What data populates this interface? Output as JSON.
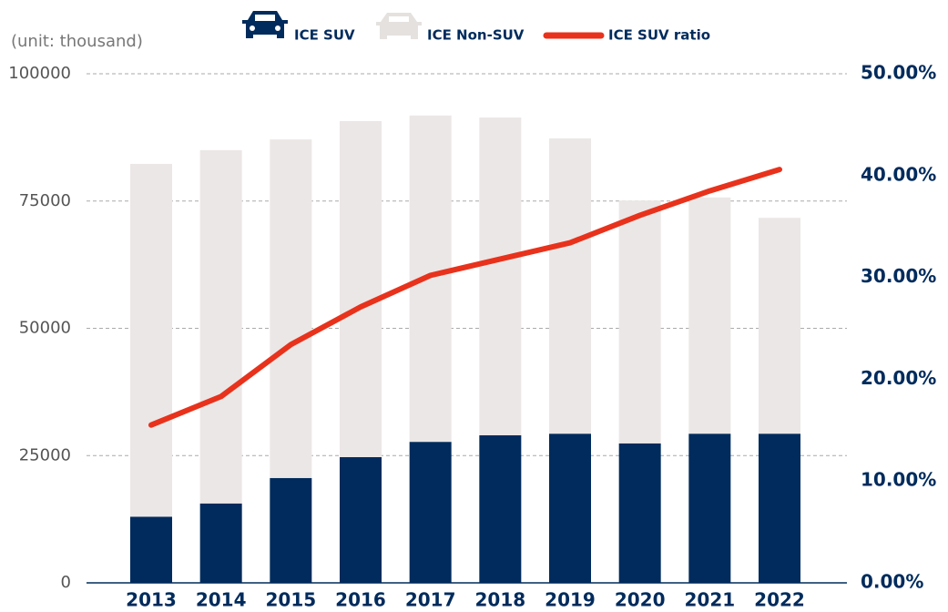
{
  "chart_data": {
    "type": "bar",
    "unit_label": "(unit: thousand)",
    "categories": [
      "2013",
      "2014",
      "2015",
      "2016",
      "2017",
      "2018",
      "2019",
      "2020",
      "2021",
      "2022"
    ],
    "series": [
      {
        "name": "ICE SUV",
        "type": "bar",
        "color": "#002b5c",
        "axis": "y",
        "values": [
          13000,
          15600,
          20600,
          24700,
          27700,
          29000,
          29300,
          27400,
          29300,
          29300
        ]
      },
      {
        "name": "ICE Non-SUV",
        "type": "bar",
        "color": "#ebe7e6",
        "axis": "y",
        "values": [
          69300,
          69400,
          66500,
          66000,
          64100,
          62400,
          58000,
          47700,
          46400,
          42400
        ]
      },
      {
        "name": "ICE SUV ratio",
        "type": "line",
        "color": "#e8321c",
        "axis": "y2",
        "values": [
          15.5,
          18.3,
          23.4,
          27.1,
          30.2,
          31.8,
          33.4,
          36.1,
          38.5,
          40.6
        ]
      }
    ],
    "stacked": true,
    "ylim": [
      0,
      100000
    ],
    "yticks": [
      0,
      25000,
      50000,
      75000,
      100000
    ],
    "y2lim": [
      0,
      50
    ],
    "y2ticks": [
      {
        "value": 0,
        "label": "0.00%"
      },
      {
        "value": 10,
        "label": "10.00%"
      },
      {
        "value": 20,
        "label": "20.00%"
      },
      {
        "value": 30,
        "label": "30.00%"
      },
      {
        "value": 40,
        "label": "40.00%"
      },
      {
        "value": 50,
        "label": "50.00%"
      }
    ],
    "grid": true
  }
}
